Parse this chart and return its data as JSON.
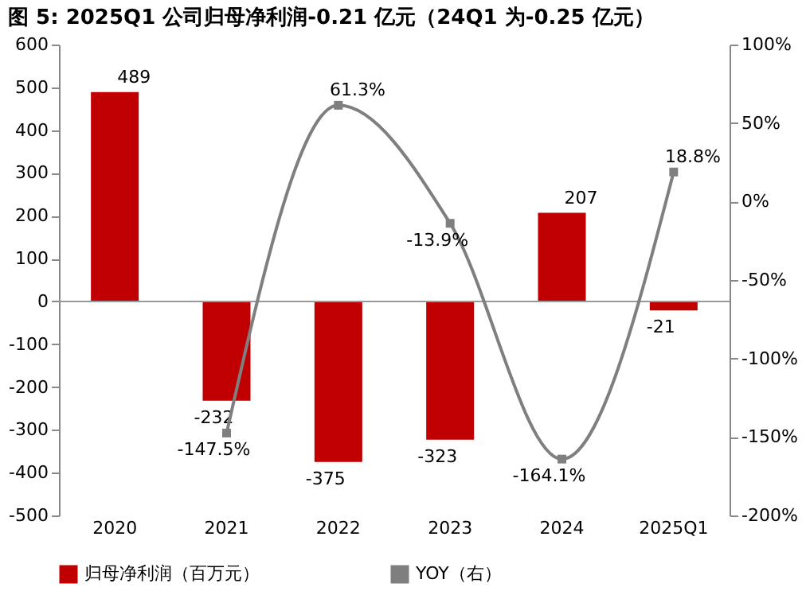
{
  "chart_data": {
    "type": "bar",
    "title": "图 5: 2025Q1 公司归母净利润-0.21 亿元（24Q1 为-0.25 亿元）",
    "categories": [
      "2020",
      "2021",
      "2022",
      "2023",
      "2024",
      "2025Q1"
    ],
    "series": [
      {
        "name": "归母净利润（百万元）",
        "color": "#c00000",
        "values": [
          489,
          -232,
          -375,
          -323,
          207,
          -21
        ],
        "value_labels": [
          "489",
          "-232",
          "-375",
          "-323",
          "207",
          "-21"
        ]
      },
      {
        "name": "YOY（右）",
        "type": "line",
        "axis": "y2",
        "color": "#7f7f7f",
        "marker": "square",
        "values": [
          null,
          -147.5,
          61.3,
          -13.9,
          -164.1,
          18.8
        ],
        "value_labels": [
          null,
          "-147.5%",
          "61.3%",
          "-13.9%",
          "-164.1%",
          "18.8%"
        ]
      }
    ],
    "ylim": [
      -500,
      600
    ],
    "yticks": [
      -500,
      -400,
      -300,
      -200,
      -100,
      0,
      100,
      200,
      300,
      400,
      500,
      600
    ],
    "y2lim": [
      -200,
      100
    ],
    "y2ticks": [
      {
        "value": -200,
        "label": "-200%"
      },
      {
        "value": -150,
        "label": "-150%"
      },
      {
        "value": -100,
        "label": "-100%"
      },
      {
        "value": -50,
        "label": "-50%"
      },
      {
        "value": 0,
        "label": "0%"
      },
      {
        "value": 50,
        "label": "50%"
      },
      {
        "value": 100,
        "label": "100%"
      }
    ],
    "legend": "bottom"
  }
}
